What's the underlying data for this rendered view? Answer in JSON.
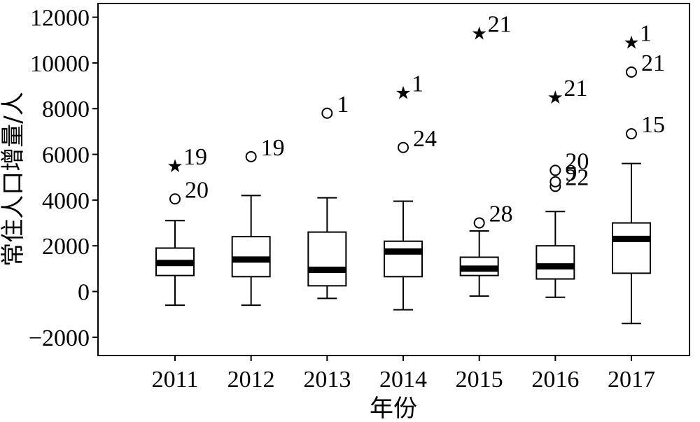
{
  "chart_data": {
    "type": "boxplot",
    "xlabel": "年份",
    "ylabel": "常住人口增量/人",
    "ylim": [
      -2800,
      12600
    ],
    "yticks": [
      -2000,
      0,
      2000,
      4000,
      6000,
      8000,
      10000,
      12000
    ],
    "ytick_labels": [
      "−2000",
      "0",
      "2000",
      "4000",
      "6000",
      "8000",
      "10000",
      "12000"
    ],
    "categories": [
      "2011",
      "2012",
      "2013",
      "2014",
      "2015",
      "2016",
      "2017"
    ],
    "boxes": [
      {
        "category": "2011",
        "whisker_low": -600,
        "q1": 700,
        "median": 1250,
        "q3": 1900,
        "whisker_high": 3100,
        "outliers": [
          {
            "value": 4050,
            "marker": "circle",
            "label": "20"
          },
          {
            "value": 5500,
            "marker": "star",
            "label": "19"
          }
        ]
      },
      {
        "category": "2012",
        "whisker_low": -600,
        "q1": 650,
        "median": 1400,
        "q3": 2400,
        "whisker_high": 4200,
        "outliers": [
          {
            "value": 5900,
            "marker": "circle",
            "label": "19"
          }
        ]
      },
      {
        "category": "2013",
        "whisker_low": -300,
        "q1": 250,
        "median": 950,
        "q3": 2600,
        "whisker_high": 4100,
        "outliers": [
          {
            "value": 7800,
            "marker": "circle",
            "label": "1"
          }
        ]
      },
      {
        "category": "2014",
        "whisker_low": -800,
        "q1": 650,
        "median": 1750,
        "q3": 2200,
        "whisker_high": 3950,
        "outliers": [
          {
            "value": 6300,
            "marker": "circle",
            "label": "24"
          },
          {
            "value": 8700,
            "marker": "star",
            "label": "1"
          }
        ]
      },
      {
        "category": "2015",
        "whisker_low": -200,
        "q1": 700,
        "median": 1000,
        "q3": 1500,
        "whisker_high": 2650,
        "outliers": [
          {
            "value": 3000,
            "marker": "circle",
            "label": "28"
          },
          {
            "value": 11300,
            "marker": "star",
            "label": "21"
          }
        ]
      },
      {
        "category": "2016",
        "whisker_low": -250,
        "q1": 550,
        "median": 1100,
        "q3": 2000,
        "whisker_high": 3500,
        "outliers": [
          {
            "value": 4600,
            "marker": "circle",
            "label": "22"
          },
          {
            "value": 4800,
            "marker": "circle",
            "label": "9"
          },
          {
            "value": 5300,
            "marker": "circle",
            "label": "20"
          },
          {
            "value": 8500,
            "marker": "star",
            "label": "21"
          }
        ]
      },
      {
        "category": "2017",
        "whisker_low": -1400,
        "q1": 800,
        "median": 2300,
        "q3": 3000,
        "whisker_high": 5600,
        "outliers": [
          {
            "value": 6900,
            "marker": "circle",
            "label": "15"
          },
          {
            "value": 9600,
            "marker": "circle",
            "label": "21"
          },
          {
            "value": 10900,
            "marker": "star",
            "label": "1"
          }
        ]
      }
    ]
  }
}
